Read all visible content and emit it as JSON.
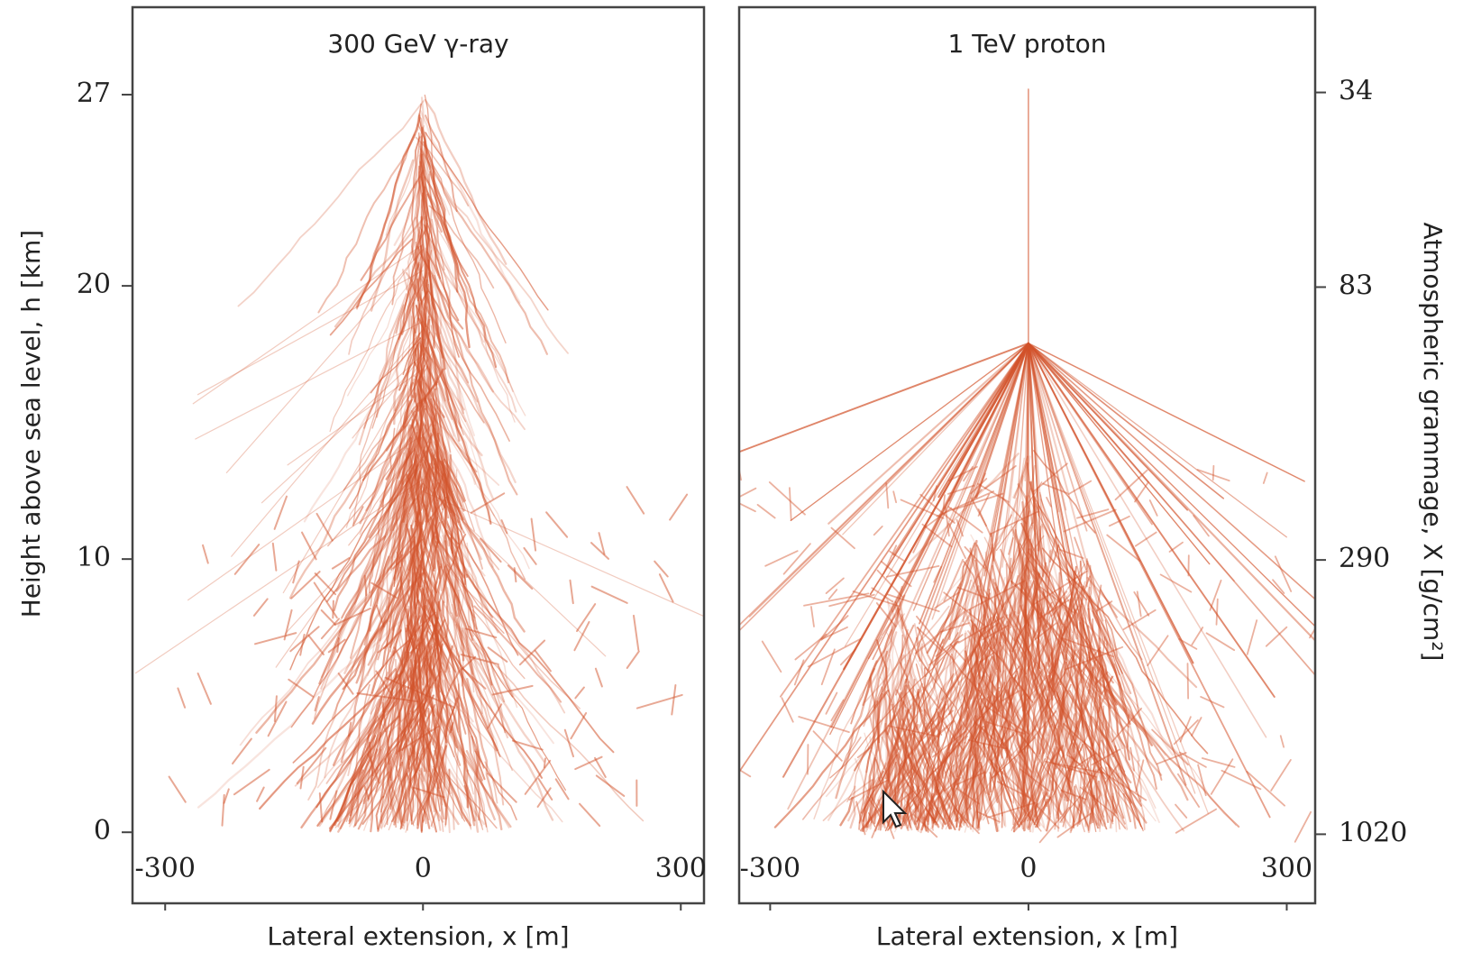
{
  "chart_data": [
    {
      "type": "shower",
      "title": "300 GeV γ-ray",
      "xlabel": "Lateral extension, x [m]",
      "ylabel": "Height above sea level, h [km]",
      "xlim": [
        -338,
        327
      ],
      "xticks": [
        -300,
        0,
        300
      ],
      "ylim": [
        -2.6,
        30.2
      ],
      "yticks": [
        0,
        10,
        20,
        27
      ],
      "color": "#d2522a"
    },
    {
      "type": "shower",
      "title": "1 TeV proton",
      "xlabel": "Lateral extension, x [m]",
      "y2label": "Atmospheric grammage, X [g/cm²]",
      "xlim": [
        -336,
        333
      ],
      "xticks": [
        -300,
        0,
        300
      ],
      "ylim": [
        -2.6,
        30.2
      ],
      "y2lim": [
        1400,
        23
      ],
      "y2scale": "log",
      "y2ticks": [
        34,
        83,
        290,
        1020
      ],
      "color": "#d2522a"
    }
  ]
}
